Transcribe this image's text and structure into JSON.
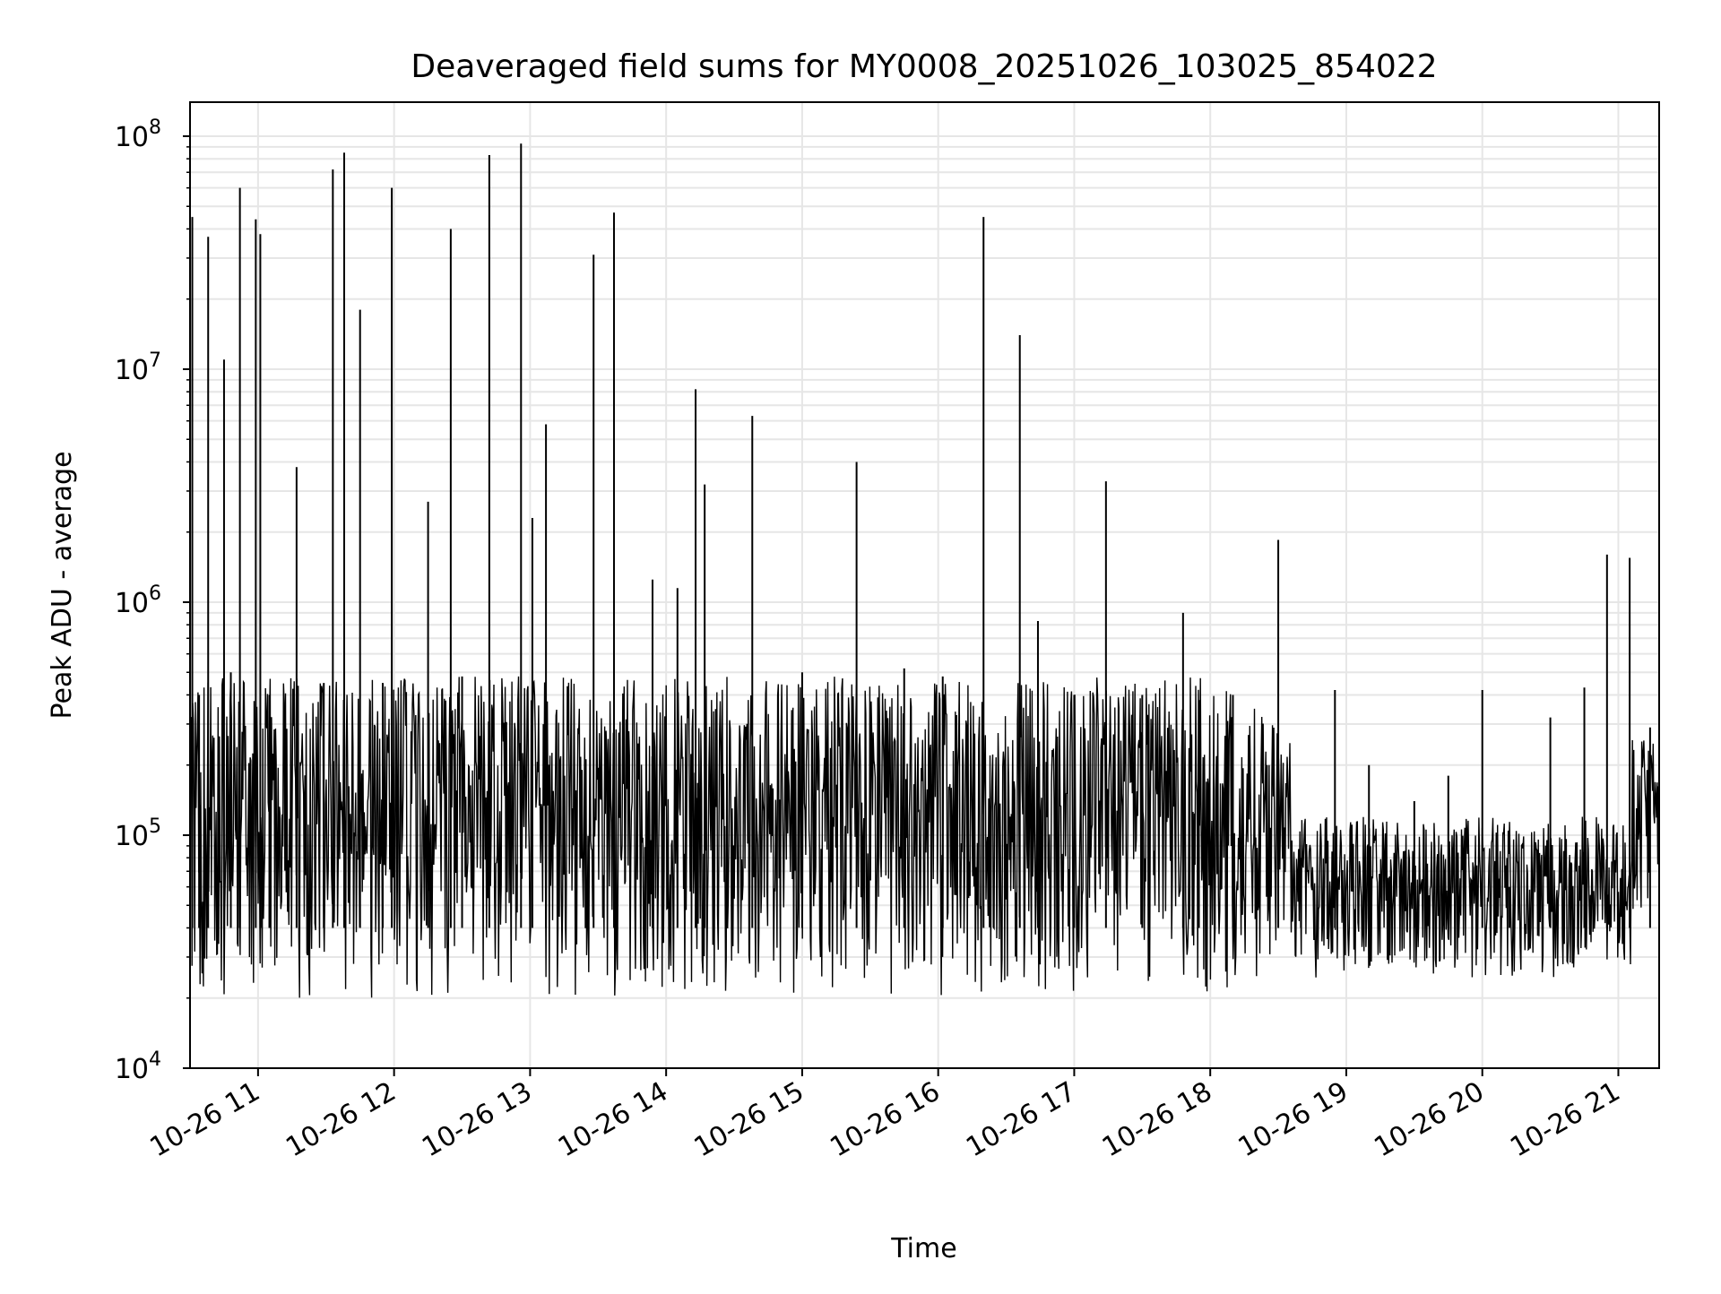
{
  "chart_data": {
    "type": "line",
    "title": "Deaveraged field sums for MY0008_20251026_103025_854022",
    "xlabel": "Time",
    "ylabel": "Peak ADU - average",
    "y_scale": "log",
    "ylim": [
      10000,
      140000000
    ],
    "xlim": [
      "2025-10-26 10:30",
      "2025-10-26 21:18"
    ],
    "grid": true,
    "line_color": "#000000",
    "grid_color": "#e6e6e6",
    "x_ticks": [
      {
        "t": "2025-10-26 11:00",
        "label": "10-26 11"
      },
      {
        "t": "2025-10-26 12:00",
        "label": "10-26 12"
      },
      {
        "t": "2025-10-26 13:00",
        "label": "10-26 13"
      },
      {
        "t": "2025-10-26 14:00",
        "label": "10-26 14"
      },
      {
        "t": "2025-10-26 15:00",
        "label": "10-26 15"
      },
      {
        "t": "2025-10-26 16:00",
        "label": "10-26 16"
      },
      {
        "t": "2025-10-26 17:00",
        "label": "10-26 17"
      },
      {
        "t": "2025-10-26 18:00",
        "label": "10-26 18"
      },
      {
        "t": "2025-10-26 19:00",
        "label": "10-26 19"
      },
      {
        "t": "2025-10-26 20:00",
        "label": "10-26 20"
      },
      {
        "t": "2025-10-26 21:00",
        "label": "10-26 21"
      }
    ],
    "y_ticks": [
      {
        "value": 10000,
        "base": "10",
        "exp": "4"
      },
      {
        "value": 100000,
        "base": "10",
        "exp": "5"
      },
      {
        "value": 1000000,
        "base": "10",
        "exp": "6"
      },
      {
        "value": 10000000,
        "base": "10",
        "exp": "7"
      },
      {
        "value": 100000000,
        "base": "10",
        "exp": "8"
      }
    ],
    "series": [
      {
        "x": [
          "2025-10-26 10:31",
          "2025-10-26 10:34",
          "2025-10-26 10:38",
          "2025-10-26 10:45",
          "2025-10-26 10:48",
          "2025-10-26 10:52",
          "2025-10-26 10:59",
          "2025-10-26 11:01",
          "2025-10-26 11:05",
          "2025-10-26 11:17",
          "2025-10-26 11:29",
          "2025-10-26 11:33",
          "2025-10-26 11:38",
          "2025-10-26 11:45",
          "2025-10-26 11:55",
          "2025-10-26 11:59",
          "2025-10-26 12:15",
          "2025-10-26 12:25",
          "2025-10-26 12:30",
          "2025-10-26 12:42",
          "2025-10-26 12:56",
          "2025-10-26 13:01",
          "2025-10-26 13:07",
          "2025-10-26 13:28",
          "2025-10-26 13:37",
          "2025-10-26 13:54",
          "2025-10-26 14:05",
          "2025-10-26 14:13",
          "2025-10-26 14:17",
          "2025-10-26 14:38",
          "2025-10-26 15:00",
          "2025-10-26 15:24",
          "2025-10-26 15:45",
          "2025-10-26 16:02",
          "2025-10-26 16:20",
          "2025-10-26 16:36",
          "2025-10-26 16:44",
          "2025-10-26 17:00",
          "2025-10-26 17:14",
          "2025-10-26 17:30",
          "2025-10-26 17:48",
          "2025-10-26 17:55",
          "2025-10-26 18:10",
          "2025-10-26 18:30",
          "2025-10-26 18:40",
          "2025-10-26 18:55",
          "2025-10-26 19:10",
          "2025-10-26 19:30",
          "2025-10-26 19:45",
          "2025-10-26 20:00",
          "2025-10-26 20:12",
          "2025-10-26 20:30",
          "2025-10-26 20:45",
          "2025-10-26 20:55",
          "2025-10-26 21:05",
          "2025-10-26 21:14"
        ],
        "y": [
          45000000,
          400000,
          37000000,
          11000000,
          500000,
          60000000,
          44000000,
          38000000,
          400000,
          3800000,
          450000,
          72000000,
          85000000,
          18000000,
          450000,
          60000000,
          2700000,
          40000000,
          480000,
          83000000,
          93000000,
          2300000,
          5800000,
          31000000,
          47000000,
          1250000,
          1150000,
          8200000,
          3200000,
          6300000,
          500000,
          4000000,
          520000,
          480000,
          45000000,
          14000000,
          830000,
          400000,
          3300000,
          400000,
          900000,
          380000,
          400000,
          1850000,
          80000,
          420000,
          200000,
          140000,
          180000,
          420000,
          60000,
          320000,
          430000,
          1600000,
          1550000,
          290000
        ]
      }
    ]
  }
}
